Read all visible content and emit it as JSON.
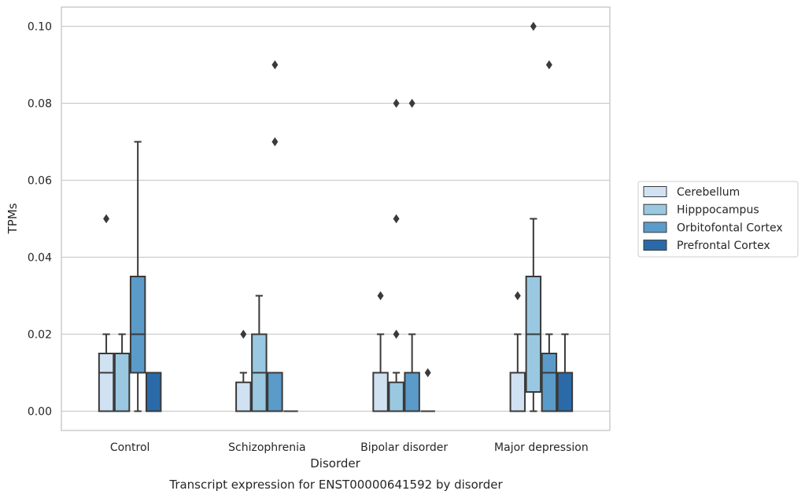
{
  "chart_data": {
    "type": "box",
    "title": "Transcript expression for ENST00000641592 by disorder",
    "xlabel": "Disorder",
    "ylabel": "TPMs",
    "ylim": [
      -0.005,
      0.105
    ],
    "yticks": [
      "0.00",
      "0.02",
      "0.04",
      "0.06",
      "0.08",
      "0.10"
    ],
    "ytick_values": [
      0,
      0.02,
      0.04,
      0.06,
      0.08,
      0.1
    ],
    "grid": "horizontal",
    "legend_position": "right",
    "categories": [
      "Control",
      "Schizophrenia",
      "Bipolar disorder",
      "Major depression"
    ],
    "series": [
      {
        "name": "Cerebellum",
        "color": "#d0e1f2",
        "boxes": [
          {
            "q1": 0,
            "median": 0.01,
            "q3": 0.015,
            "whisker_low": 0,
            "whisker_high": 0.02,
            "outliers": [
              0.05
            ]
          },
          {
            "q1": 0,
            "median": 0,
            "q3": 0.0075,
            "whisker_low": 0,
            "whisker_high": 0.01,
            "outliers": [
              0.02
            ]
          },
          {
            "q1": 0,
            "median": 0,
            "q3": 0.01,
            "whisker_low": 0,
            "whisker_high": 0.02,
            "outliers": [
              0.03
            ]
          },
          {
            "q1": 0,
            "median": 0,
            "q3": 0.01,
            "whisker_low": 0,
            "whisker_high": 0.02,
            "outliers": [
              0.03
            ]
          }
        ]
      },
      {
        "name": "Hipppocampus",
        "color": "#9ac8e0",
        "boxes": [
          {
            "q1": 0,
            "median": 0,
            "q3": 0.015,
            "whisker_low": 0,
            "whisker_high": 0.02,
            "outliers": []
          },
          {
            "q1": 0,
            "median": 0.01,
            "q3": 0.02,
            "whisker_low": 0,
            "whisker_high": 0.03,
            "outliers": []
          },
          {
            "q1": 0,
            "median": 0,
            "q3": 0.0075,
            "whisker_low": 0,
            "whisker_high": 0.01,
            "outliers": [
              0.02,
              0.05,
              0.08
            ]
          },
          {
            "q1": 0.005,
            "median": 0.02,
            "q3": 0.035,
            "whisker_low": 0,
            "whisker_high": 0.05,
            "outliers": [
              0.1
            ]
          }
        ]
      },
      {
        "name": "Orbitofontal Cortex",
        "color": "#5b9bc9",
        "boxes": [
          {
            "q1": 0.01,
            "median": 0.02,
            "q3": 0.035,
            "whisker_low": 0,
            "whisker_high": 0.07,
            "outliers": []
          },
          {
            "q1": 0,
            "median": 0,
            "q3": 0.01,
            "whisker_low": 0,
            "whisker_high": 0.01,
            "outliers": [
              0.07,
              0.09
            ]
          },
          {
            "q1": 0,
            "median": 0,
            "q3": 0.01,
            "whisker_low": 0,
            "whisker_high": 0.02,
            "outliers": [
              0.08
            ]
          },
          {
            "q1": 0,
            "median": 0.01,
            "q3": 0.015,
            "whisker_low": 0,
            "whisker_high": 0.02,
            "outliers": [
              0.09
            ]
          }
        ]
      },
      {
        "name": "Prefrontal Cortex",
        "color": "#2a6aa8",
        "boxes": [
          {
            "q1": 0,
            "median": 0,
            "q3": 0.01,
            "whisker_low": 0,
            "whisker_high": 0.01,
            "outliers": []
          },
          {
            "q1": 0,
            "median": 0,
            "q3": 0,
            "whisker_low": 0,
            "whisker_high": 0,
            "outliers": []
          },
          {
            "q1": 0,
            "median": 0,
            "q3": 0,
            "whisker_low": 0,
            "whisker_high": 0,
            "outliers": [
              0.01
            ]
          },
          {
            "q1": 0,
            "median": 0,
            "q3": 0.01,
            "whisker_low": 0,
            "whisker_high": 0.02,
            "outliers": []
          }
        ]
      }
    ]
  }
}
